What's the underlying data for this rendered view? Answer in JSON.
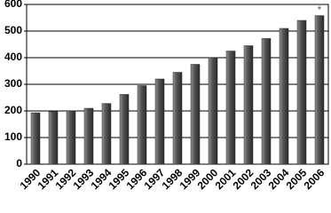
{
  "chart_data": {
    "type": "bar",
    "categories": [
      "1990",
      "1991",
      "1992",
      "1993",
      "1994",
      "1995",
      "1996",
      "1997",
      "1998",
      "1999",
      "2000",
      "2001",
      "2002",
      "2003",
      "2004",
      "2005",
      "2006"
    ],
    "values": [
      193,
      197,
      200,
      210,
      228,
      262,
      295,
      320,
      345,
      375,
      400,
      425,
      445,
      472,
      510,
      540,
      558
    ],
    "color": "#3a3a3a",
    "annotation": "*",
    "ylim": [
      0,
      600
    ],
    "yticks": [
      0,
      100,
      200,
      300,
      400,
      500,
      600
    ],
    "grid": true
  }
}
